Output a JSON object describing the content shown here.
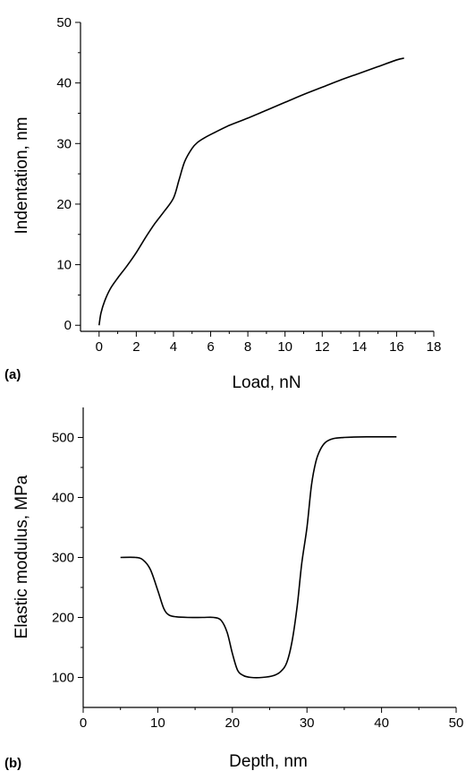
{
  "chart_data": [
    {
      "type": "line",
      "panel_label": "(a)",
      "title": "",
      "xlabel": "Load, nN",
      "ylabel": "Indentation, nm",
      "xlim": [
        -1,
        18
      ],
      "ylim": [
        -1,
        50
      ],
      "xticks": [
        0,
        2,
        4,
        6,
        8,
        10,
        12,
        14,
        16,
        18
      ],
      "yticks": [
        0,
        10,
        20,
        30,
        40,
        50
      ],
      "grid": false,
      "series": [
        {
          "x": [
            0,
            0.1,
            0.3,
            0.6,
            1.0,
            1.5,
            2.0,
            2.5,
            3.0,
            3.5,
            4.0,
            4.3,
            4.6,
            5.0,
            5.3,
            5.7,
            6.2,
            7.0,
            8.0,
            9.0,
            10.0,
            11.0,
            12.0,
            13.0,
            14.0,
            15.0,
            16.0,
            16.4
          ],
          "y": [
            0,
            2,
            4,
            6,
            7.8,
            9.8,
            12,
            14.5,
            16.8,
            18.8,
            21,
            24,
            27,
            29.2,
            30.2,
            31,
            31.8,
            33,
            34.2,
            35.5,
            36.8,
            38.1,
            39.3,
            40.5,
            41.6,
            42.7,
            43.8,
            44.1
          ]
        }
      ]
    },
    {
      "type": "line",
      "panel_label": "(b)",
      "title": "",
      "xlabel": "Depth, nm",
      "ylabel": "Elastic modulus, MPa",
      "xlim": [
        0,
        50
      ],
      "ylim": [
        50,
        550
      ],
      "xticks": [
        0,
        10,
        20,
        30,
        40,
        50
      ],
      "yticks": [
        100,
        200,
        300,
        400,
        500
      ],
      "grid": false,
      "series": [
        {
          "x": [
            5,
            7,
            8,
            9,
            10,
            10.8,
            11.5,
            12.5,
            14,
            16,
            17.5,
            18.5,
            19.3,
            20,
            20.7,
            21.5,
            22.5,
            24,
            25.5,
            26.5,
            27.3,
            28,
            28.7,
            29.3,
            30,
            30.6,
            31.2,
            31.8,
            32.5,
            33.5,
            35,
            38,
            42
          ],
          "y": [
            300,
            300,
            296,
            280,
            245,
            215,
            204,
            201,
            200,
            200,
            200,
            195,
            175,
            140,
            112,
            103,
            100,
            100,
            103,
            110,
            125,
            160,
            220,
            290,
            350,
            420,
            460,
            480,
            492,
            498,
            500,
            501,
            501
          ]
        }
      ]
    }
  ]
}
